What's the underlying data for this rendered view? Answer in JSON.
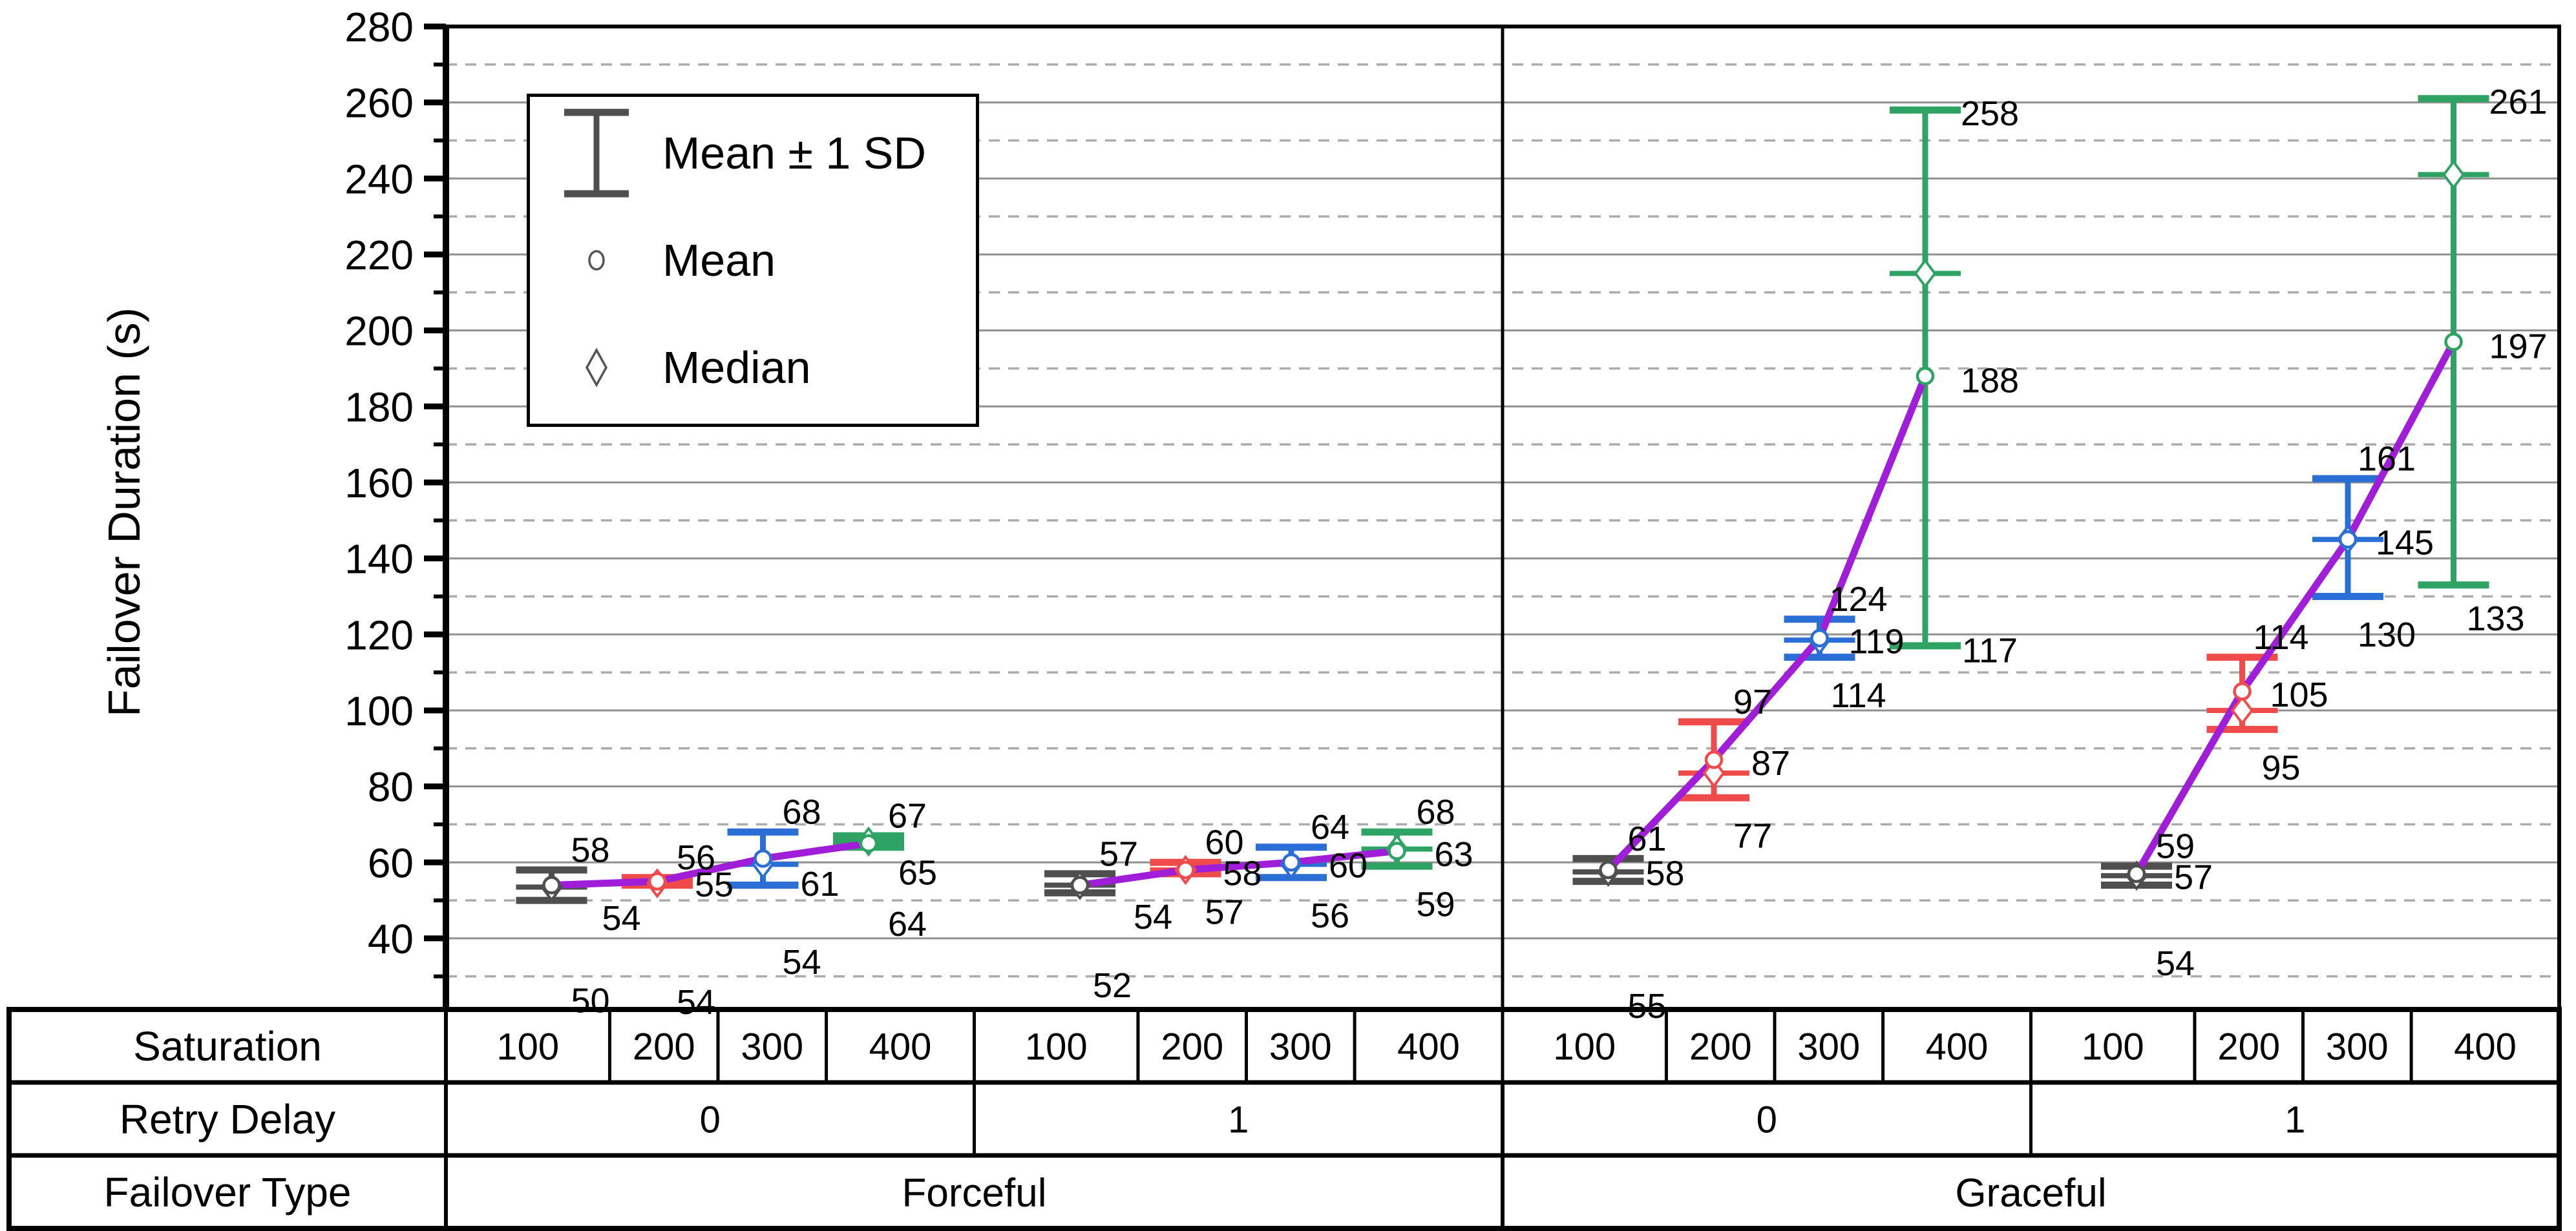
{
  "chart_data": {
    "type": "line",
    "title": "",
    "ylabel": "Failover Duration (s)",
    "ylim": [
      20,
      280
    ],
    "yticks_major": [
      40,
      60,
      80,
      100,
      120,
      140,
      160,
      180,
      200,
      220,
      240,
      260,
      280
    ],
    "yticks_minor": [
      30,
      50,
      70,
      90,
      110,
      130,
      150,
      170,
      190,
      210,
      230,
      250,
      270
    ],
    "grid": "major-solid-minor-dashed",
    "legend_position": "top-left-inside",
    "legend": [
      {
        "symbol": "error-bar",
        "label": "Mean ± 1 SD"
      },
      {
        "symbol": "circle",
        "label": "Mean"
      },
      {
        "symbol": "diamond",
        "label": "Median"
      }
    ],
    "colors": {
      "saturation_100": "#4F4F4F",
      "saturation_200": "#EF4B4B",
      "saturation_300": "#2B6FD6",
      "saturation_400": "#2FA364",
      "mean_line": "#A01ED8",
      "grid_major": "#909090",
      "grid_minor": "#ABABAB",
      "axis": "#000000"
    },
    "panels": [
      {
        "failover_type": "Forceful",
        "retry_delay": "0",
        "points": [
          {
            "saturation": "100",
            "mean": 54,
            "sd_high": 58,
            "sd_low": 50,
            "median": 53.5
          },
          {
            "saturation": "200",
            "mean": 55,
            "sd_high": 56,
            "sd_low": 54,
            "median": 54.5
          },
          {
            "saturation": "300",
            "mean": 61,
            "sd_high": 68,
            "sd_low": 54,
            "median": 59.5
          },
          {
            "saturation": "400",
            "mean": 65,
            "sd_high": 67,
            "sd_low": 64,
            "median": 65.5
          }
        ]
      },
      {
        "failover_type": "Forceful",
        "retry_delay": "1",
        "points": [
          {
            "saturation": "100",
            "mean": 54,
            "sd_high": 57,
            "sd_low": 52,
            "median": 54
          },
          {
            "saturation": "200",
            "mean": 58,
            "sd_high": 60,
            "sd_low": 57,
            "median": 58
          },
          {
            "saturation": "300",
            "mean": 60,
            "sd_high": 64,
            "sd_low": 56,
            "median": 59.5
          },
          {
            "saturation": "400",
            "mean": 63,
            "sd_high": 68,
            "sd_low": 59,
            "median": 63.5
          }
        ]
      },
      {
        "failover_type": "Graceful",
        "retry_delay": "0",
        "points": [
          {
            "saturation": "100",
            "mean": 58,
            "sd_high": 61,
            "sd_low": 55,
            "median": 57.5
          },
          {
            "saturation": "200",
            "mean": 87,
            "sd_high": 97,
            "sd_low": 77,
            "median": 83.5
          },
          {
            "saturation": "300",
            "mean": 119,
            "sd_high": 124,
            "sd_low": 114,
            "median": 118.5
          },
          {
            "saturation": "400",
            "mean": 188,
            "sd_high": 258,
            "sd_low": 117,
            "median": 215
          }
        ]
      },
      {
        "failover_type": "Graceful",
        "retry_delay": "1",
        "points": [
          {
            "saturation": "100",
            "mean": 57,
            "sd_high": 59,
            "sd_low": 54,
            "median": 56.5
          },
          {
            "saturation": "200",
            "mean": 105,
            "sd_high": 114,
            "sd_low": 95,
            "median": 100
          },
          {
            "saturation": "300",
            "mean": 145,
            "sd_high": 161,
            "sd_low": 130,
            "median": 145
          },
          {
            "saturation": "400",
            "mean": 197,
            "sd_high": 261,
            "sd_low": 133,
            "median": 241
          }
        ]
      }
    ],
    "table": {
      "row_headers": [
        "Saturation",
        "Retry Delay",
        "Failover Type"
      ],
      "saturation_values": [
        "100",
        "200",
        "300",
        "400"
      ],
      "retry_delay_values": [
        "0",
        "1",
        "0",
        "1"
      ],
      "failover_type_values": [
        "Forceful",
        "Graceful"
      ]
    }
  }
}
